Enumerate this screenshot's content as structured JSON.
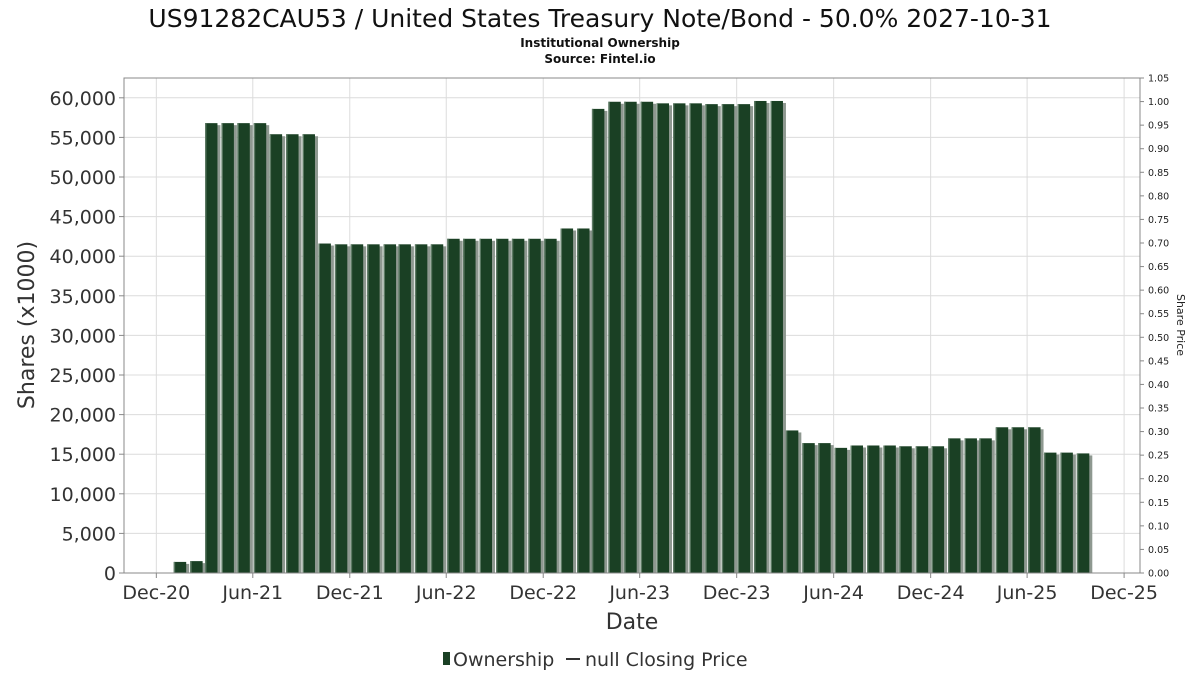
{
  "chart_data": {
    "type": "bar",
    "title": "US91282CAU53 / United States Treasury Note/Bond - 50.0% 2027-10-31",
    "subtitle": "Institutional Ownership",
    "source": "Source: Fintel.io",
    "xlabel": "Date",
    "ylabel": "Shares (x1000)",
    "y2label": "Share Price",
    "ylim": [
      0,
      62500
    ],
    "y2lim": [
      0,
      1.05
    ],
    "xlim": [
      "2020-10-01",
      "2025-12-31"
    ],
    "grid": true,
    "legend_position": "bottom-center",
    "yticks": [
      "0",
      "5,000",
      "10,000",
      "15,000",
      "20,000",
      "25,000",
      "30,000",
      "35,000",
      "40,000",
      "45,000",
      "50,000",
      "55,000",
      "60,000"
    ],
    "ytick_values": [
      0,
      5000,
      10000,
      15000,
      20000,
      25000,
      30000,
      35000,
      40000,
      45000,
      50000,
      55000,
      60000
    ],
    "y2ticks": [
      "0.00",
      "0.05",
      "0.10",
      "0.15",
      "0.20",
      "0.25",
      "0.30",
      "0.35",
      "0.40",
      "0.45",
      "0.50",
      "0.55",
      "0.60",
      "0.65",
      "0.70",
      "0.75",
      "0.80",
      "0.85",
      "0.90",
      "0.95",
      "1.00",
      "1.05"
    ],
    "xticks": [
      {
        "label": "Dec-20",
        "date": "2020-12-01"
      },
      {
        "label": "Jun-21",
        "date": "2021-06-01"
      },
      {
        "label": "Dec-21",
        "date": "2021-12-01"
      },
      {
        "label": "Jun-22",
        "date": "2022-06-01"
      },
      {
        "label": "Dec-22",
        "date": "2022-12-01"
      },
      {
        "label": "Jun-23",
        "date": "2023-06-01"
      },
      {
        "label": "Dec-23",
        "date": "2023-12-01"
      },
      {
        "label": "Jun-24",
        "date": "2024-06-01"
      },
      {
        "label": "Dec-24",
        "date": "2024-12-01"
      },
      {
        "label": "Jun-25",
        "date": "2025-06-01"
      },
      {
        "label": "Dec-25",
        "date": "2025-12-01"
      }
    ],
    "series": [
      {
        "name": "Ownership",
        "color": "#1a4024",
        "points": [
          {
            "x": "2021-01",
            "y": 1400
          },
          {
            "x": "2021-02",
            "y": 1500
          },
          {
            "x": "2021-03",
            "y": 56800
          },
          {
            "x": "2021-04",
            "y": 56800
          },
          {
            "x": "2021-05",
            "y": 56800
          },
          {
            "x": "2021-06",
            "y": 56800
          },
          {
            "x": "2021-07",
            "y": 55400
          },
          {
            "x": "2021-08",
            "y": 55400
          },
          {
            "x": "2021-09",
            "y": 55400
          },
          {
            "x": "2021-10",
            "y": 41600
          },
          {
            "x": "2021-11",
            "y": 41500
          },
          {
            "x": "2021-12",
            "y": 41500
          },
          {
            "x": "2022-01",
            "y": 41500
          },
          {
            "x": "2022-02",
            "y": 41500
          },
          {
            "x": "2022-03",
            "y": 41500
          },
          {
            "x": "2022-04",
            "y": 41500
          },
          {
            "x": "2022-05",
            "y": 41500
          },
          {
            "x": "2022-06",
            "y": 42200
          },
          {
            "x": "2022-07",
            "y": 42200
          },
          {
            "x": "2022-08",
            "y": 42200
          },
          {
            "x": "2022-09",
            "y": 42200
          },
          {
            "x": "2022-10",
            "y": 42200
          },
          {
            "x": "2022-11",
            "y": 42200
          },
          {
            "x": "2022-12",
            "y": 42200
          },
          {
            "x": "2023-01",
            "y": 43500
          },
          {
            "x": "2023-02",
            "y": 43500
          },
          {
            "x": "2023-03",
            "y": 58600
          },
          {
            "x": "2023-04",
            "y": 59500
          },
          {
            "x": "2023-05",
            "y": 59500
          },
          {
            "x": "2023-06",
            "y": 59500
          },
          {
            "x": "2023-07",
            "y": 59300
          },
          {
            "x": "2023-08",
            "y": 59300
          },
          {
            "x": "2023-09",
            "y": 59300
          },
          {
            "x": "2023-10",
            "y": 59200
          },
          {
            "x": "2023-11",
            "y": 59200
          },
          {
            "x": "2023-12",
            "y": 59200
          },
          {
            "x": "2024-01",
            "y": 59600
          },
          {
            "x": "2024-02",
            "y": 59600
          },
          {
            "x": "2024-03",
            "y": 18000
          },
          {
            "x": "2024-04",
            "y": 16400
          },
          {
            "x": "2024-05",
            "y": 16400
          },
          {
            "x": "2024-06",
            "y": 15800
          },
          {
            "x": "2024-07",
            "y": 16100
          },
          {
            "x": "2024-08",
            "y": 16100
          },
          {
            "x": "2024-09",
            "y": 16100
          },
          {
            "x": "2024-10",
            "y": 16000
          },
          {
            "x": "2024-11",
            "y": 16000
          },
          {
            "x": "2024-12",
            "y": 16000
          },
          {
            "x": "2025-01",
            "y": 17000
          },
          {
            "x": "2025-02",
            "y": 17000
          },
          {
            "x": "2025-03",
            "y": 17000
          },
          {
            "x": "2025-04",
            "y": 18400
          },
          {
            "x": "2025-05",
            "y": 18400
          },
          {
            "x": "2025-06",
            "y": 18400
          },
          {
            "x": "2025-07",
            "y": 15200
          },
          {
            "x": "2025-08",
            "y": 15200
          },
          {
            "x": "2025-09",
            "y": 15100
          }
        ]
      }
    ],
    "legend": [
      {
        "label": "Ownership",
        "color": "#1a4024",
        "marker": "bar"
      },
      {
        "label": "null Closing Price",
        "color": "#333333",
        "marker": "line"
      }
    ]
  }
}
